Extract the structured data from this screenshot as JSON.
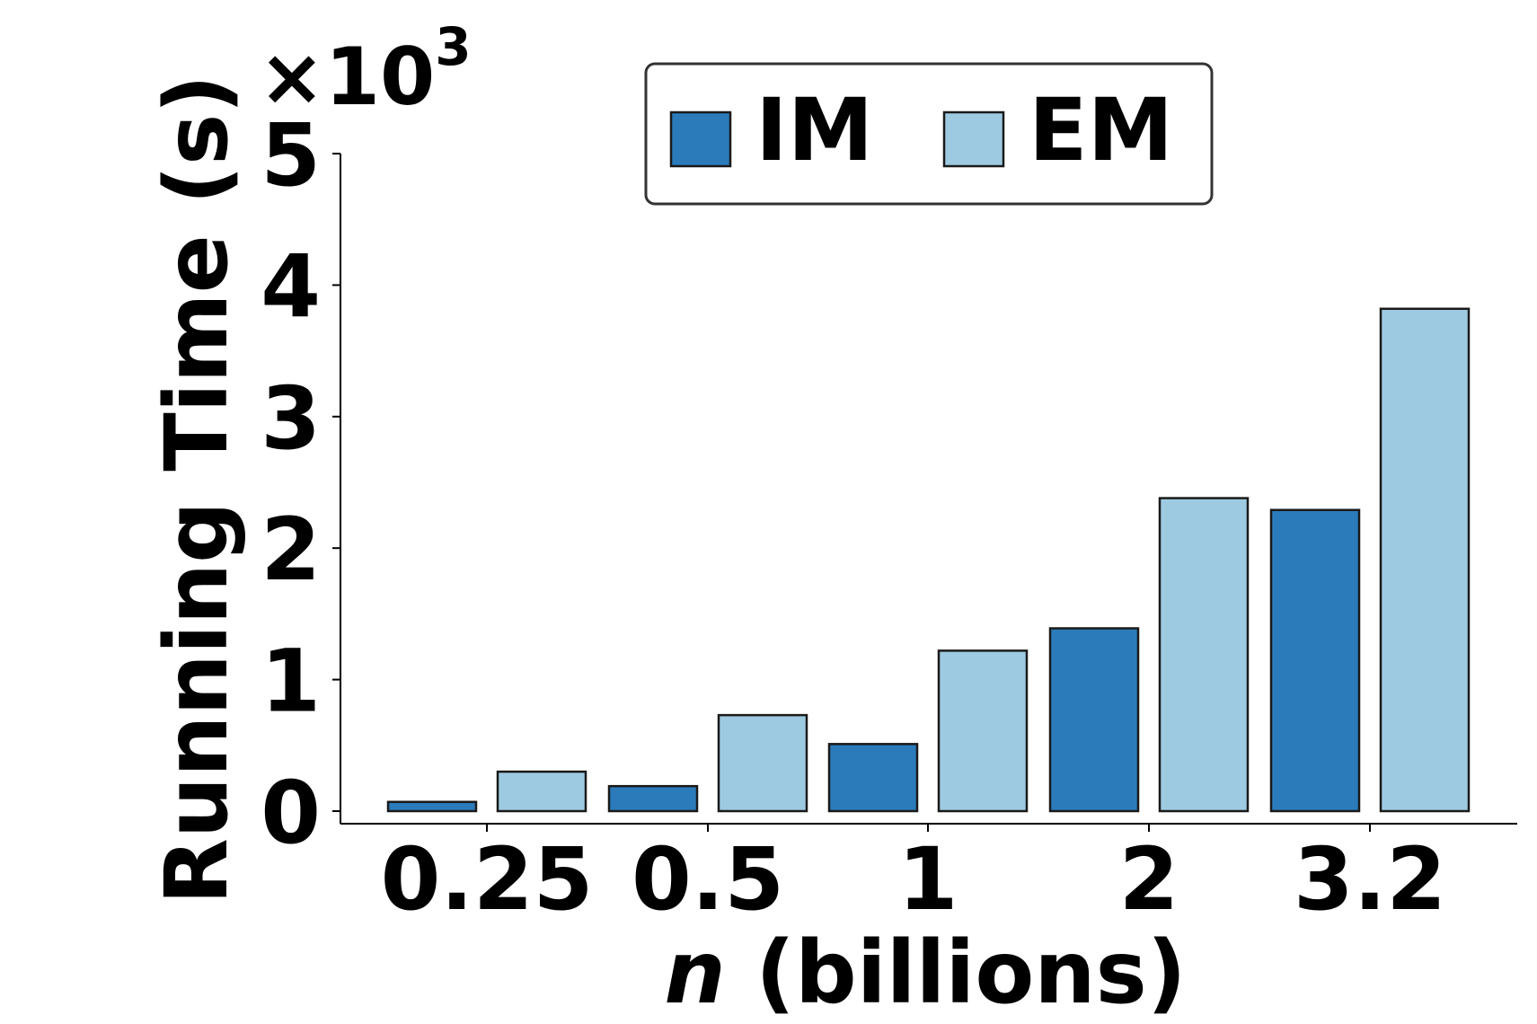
{
  "chart_data": {
    "type": "bar",
    "title": "",
    "xlabel": {
      "var": "n",
      "rest": " (billions)"
    },
    "ylabel": "Running Time (s)",
    "y_multiplier": {
      "base": "×10",
      "exp": "3"
    },
    "categories": [
      "0.25",
      "0.5",
      "1",
      "2",
      "3.2"
    ],
    "yticks": [
      "0",
      "1",
      "2",
      "3",
      "4",
      "5"
    ],
    "ylim": [
      0,
      5
    ],
    "series": [
      {
        "name": "IM",
        "color": "#2b7bba",
        "values": [
          0.07,
          0.19,
          0.51,
          1.39,
          2.29
        ]
      },
      {
        "name": "EM",
        "color": "#9ecae1",
        "values": [
          0.3,
          0.73,
          1.22,
          2.38,
          3.82
        ]
      }
    ],
    "legend_position": "top-center",
    "grid": false
  }
}
